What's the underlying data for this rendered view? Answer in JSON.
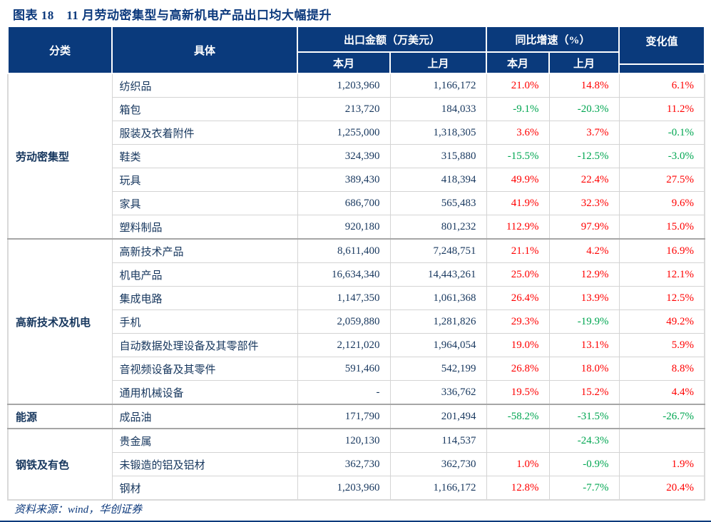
{
  "title": "图表 18　11 月劳动密集型与高新机电产品出口均大幅提升",
  "source": "资料来源：wind，华创证券",
  "colors": {
    "header_bg": "#0a3a7c",
    "title_text": "#0d3a7d",
    "body_text": "#17375e",
    "positive": "#ff0000",
    "negative": "#00a651"
  },
  "chart_data": {
    "type": "table",
    "title": "图表 18　11 月劳动密集型与高新机电产品出口均大幅提升",
    "header": {
      "category": "分类",
      "detail": "具体",
      "amount_group": "出口金额（万美元）",
      "yoy_group": "同比增速（%）",
      "change": "变化值",
      "this_month": "本月",
      "last_month": "上月"
    },
    "groups": [
      {
        "category": "劳动密集型",
        "rows": [
          {
            "detail": "纺织品",
            "amount_cur": "1,203,960",
            "amount_prev": "1,166,172",
            "yoy_cur": "21.0%",
            "yoy_prev": "14.8%",
            "change": "6.1%"
          },
          {
            "detail": "箱包",
            "amount_cur": "213,720",
            "amount_prev": "184,033",
            "yoy_cur": "-9.1%",
            "yoy_prev": "-20.3%",
            "change": "11.2%"
          },
          {
            "detail": "服装及衣着附件",
            "amount_cur": "1,255,000",
            "amount_prev": "1,318,305",
            "yoy_cur": "3.6%",
            "yoy_prev": "3.7%",
            "change": "-0.1%"
          },
          {
            "detail": "鞋类",
            "amount_cur": "324,390",
            "amount_prev": "315,880",
            "yoy_cur": "-15.5%",
            "yoy_prev": "-12.5%",
            "change": "-3.0%"
          },
          {
            "detail": "玩具",
            "amount_cur": "389,430",
            "amount_prev": "418,394",
            "yoy_cur": "49.9%",
            "yoy_prev": "22.4%",
            "change": "27.5%"
          },
          {
            "detail": "家具",
            "amount_cur": "686,700",
            "amount_prev": "565,483",
            "yoy_cur": "41.9%",
            "yoy_prev": "32.3%",
            "change": "9.6%"
          },
          {
            "detail": "塑料制品",
            "amount_cur": "920,180",
            "amount_prev": "801,232",
            "yoy_cur": "112.9%",
            "yoy_prev": "97.9%",
            "change": "15.0%"
          }
        ]
      },
      {
        "category": "高新技术及机电",
        "rows": [
          {
            "detail": "高新技术产品",
            "amount_cur": "8,611,400",
            "amount_prev": "7,248,751",
            "yoy_cur": "21.1%",
            "yoy_prev": "4.2%",
            "change": "16.9%"
          },
          {
            "detail": "机电产品",
            "amount_cur": "16,634,340",
            "amount_prev": "14,443,261",
            "yoy_cur": "25.0%",
            "yoy_prev": "12.9%",
            "change": "12.1%"
          },
          {
            "detail": "集成电路",
            "amount_cur": "1,147,350",
            "amount_prev": "1,061,368",
            "yoy_cur": "26.4%",
            "yoy_prev": "13.9%",
            "change": "12.5%"
          },
          {
            "detail": "手机",
            "amount_cur": "2,059,880",
            "amount_prev": "1,281,826",
            "yoy_cur": "29.3%",
            "yoy_prev": "-19.9%",
            "change": "49.2%"
          },
          {
            "detail": "自动数据处理设备及其零部件",
            "amount_cur": "2,121,020",
            "amount_prev": "1,964,054",
            "yoy_cur": "19.0%",
            "yoy_prev": "13.1%",
            "change": "5.9%"
          },
          {
            "detail": "音视频设备及其零件",
            "amount_cur": "591,460",
            "amount_prev": "542,199",
            "yoy_cur": "26.8%",
            "yoy_prev": "18.0%",
            "change": "8.8%"
          },
          {
            "detail": "通用机械设备",
            "amount_cur": "-",
            "amount_prev": "336,762",
            "yoy_cur": "19.5%",
            "yoy_prev": "15.2%",
            "change": "4.4%"
          }
        ]
      },
      {
        "category": "能源",
        "rows": [
          {
            "detail": "成品油",
            "amount_cur": "171,790",
            "amount_prev": "201,494",
            "yoy_cur": "-58.2%",
            "yoy_prev": "-31.5%",
            "change": "-26.7%"
          }
        ]
      },
      {
        "category": "钢铁及有色",
        "rows": [
          {
            "detail": "贵金属",
            "amount_cur": "120,130",
            "amount_prev": "114,537",
            "yoy_cur": "",
            "yoy_prev": "-24.3%",
            "change": ""
          },
          {
            "detail": "未锻造的铝及铝材",
            "amount_cur": "362,730",
            "amount_prev": "362,730",
            "yoy_cur": "1.0%",
            "yoy_prev": "-0.9%",
            "change": "1.9%"
          },
          {
            "detail": "钢材",
            "amount_cur": "1,203,960",
            "amount_prev": "1,166,172",
            "yoy_cur": "12.8%",
            "yoy_prev": "-7.7%",
            "change": "20.4%"
          }
        ]
      }
    ]
  }
}
